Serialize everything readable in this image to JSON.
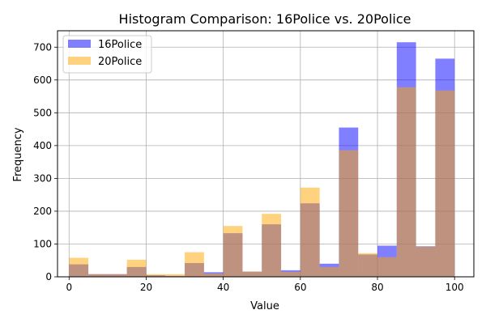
{
  "chart_data": {
    "type": "histogram",
    "title": "Histogram Comparison: 16Police vs. 20Police",
    "xlabel": "Value",
    "ylabel": "Frequency",
    "xlim": [
      -3,
      105
    ],
    "ylim": [
      0,
      750
    ],
    "xticks": [
      0,
      20,
      40,
      60,
      80,
      100
    ],
    "yticks": [
      0,
      100,
      200,
      300,
      400,
      500,
      600,
      700
    ],
    "grid": true,
    "legend_position": "top-left",
    "bin_edges": [
      0,
      5,
      10,
      15,
      20,
      25,
      30,
      35,
      40,
      45,
      50,
      55,
      60,
      65,
      70,
      75,
      80,
      85,
      90,
      95,
      100
    ],
    "series": [
      {
        "name": "16Police",
        "color": "#0000ff",
        "opacity": 0.5,
        "values": [
          38,
          8,
          8,
          30,
          5,
          3,
          42,
          14,
          133,
          16,
          160,
          20,
          224,
          40,
          455,
          68,
          95,
          715,
          93,
          665
        ]
      },
      {
        "name": "20Police",
        "color": "#ffa500",
        "opacity": 0.5,
        "values": [
          58,
          8,
          8,
          52,
          8,
          8,
          75,
          10,
          155,
          16,
          192,
          15,
          272,
          30,
          386,
          72,
          60,
          578,
          92,
          568
        ]
      }
    ]
  }
}
